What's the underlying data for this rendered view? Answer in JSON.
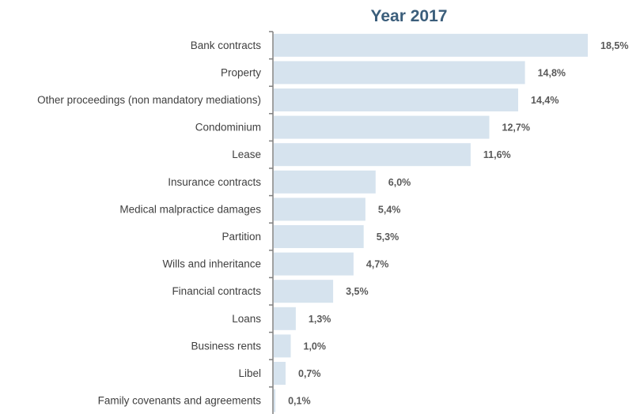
{
  "chart_data": {
    "type": "bar",
    "orientation": "horizontal",
    "title": "Year 2017",
    "categories": [
      "Bank contracts",
      "Property",
      "Other proceedings (non mandatory mediations)",
      "Condominium",
      "Lease",
      "Insurance contracts",
      "Medical malpractice damages",
      "Partition",
      "Wills  and inheritance",
      "Financial contracts",
      "Loans",
      "Business rents",
      "Libel",
      "Family covenants and agreements"
    ],
    "values": [
      18.5,
      14.8,
      14.4,
      12.7,
      11.6,
      6.0,
      5.4,
      5.3,
      4.7,
      3.5,
      1.3,
      1.0,
      0.7,
      0.1
    ],
    "value_labels": [
      "18,5%",
      "14,8%",
      "14,4%",
      "12,7%",
      "11,6%",
      "6,0%",
      "5,4%",
      "5,3%",
      "4,7%",
      "3,5%",
      "1,3%",
      "1,0%",
      "0,7%",
      "0,1%"
    ],
    "xlim": [
      0,
      18.5
    ],
    "grid": false,
    "legend": "none",
    "colors": {
      "bar": "#d6e3ee",
      "axis": "#808080",
      "title": "#3b5e7b"
    }
  }
}
